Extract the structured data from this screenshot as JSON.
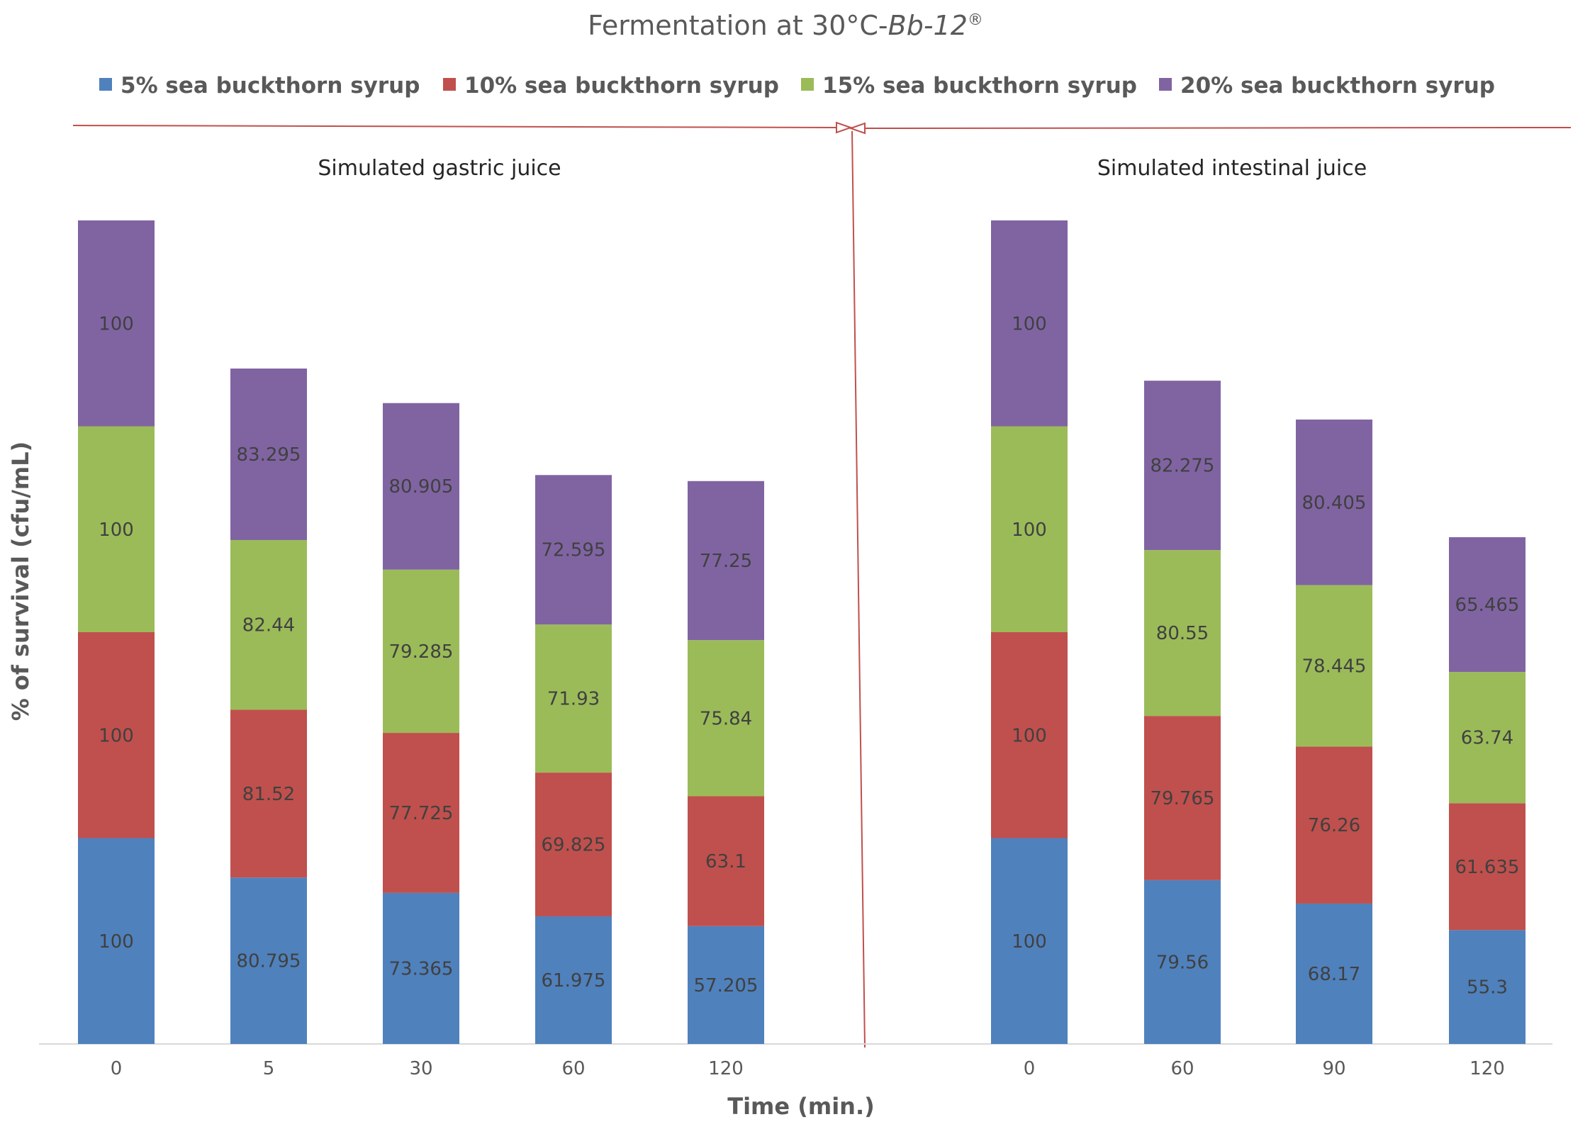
{
  "chart_data": {
    "type": "bar",
    "stacked": true,
    "title": "Fermentation at 30°C-",
    "title_italic": "Bb-12",
    "title_sup": "®",
    "ylabel": "% of survival (cfu/mL)",
    "xlabel": "Time (min.)",
    "ylim": [
      0,
      400
    ],
    "colors": [
      "#4f81bd",
      "#c0504d",
      "#9bbb59",
      "#8064a2"
    ],
    "divider_color": "#c0504d",
    "legend": [
      "5% sea buckthorn syrup",
      "10% sea buckthorn syrup",
      "15% sea buckthorn syrup",
      "20% sea buckthorn syrup"
    ],
    "panels": [
      {
        "label": "Simulated gastric juice",
        "categories": [
          "0",
          "5",
          "30",
          "60",
          "120"
        ],
        "series": [
          {
            "name": "5% sea buckthorn syrup",
            "values": [
              100,
              80.795,
              73.365,
              61.975,
              57.205
            ]
          },
          {
            "name": "10% sea buckthorn syrup",
            "values": [
              100,
              81.52,
              77.725,
              69.825,
              63.1
            ]
          },
          {
            "name": "15% sea buckthorn syrup",
            "values": [
              100,
              82.44,
              79.285,
              71.93,
              75.84
            ]
          },
          {
            "name": "20% sea buckthorn syrup",
            "values": [
              100,
              83.295,
              80.905,
              72.595,
              77.25
            ]
          }
        ]
      },
      {
        "label": "Simulated intestinal juice",
        "categories": [
          "0",
          "60",
          "90",
          "120"
        ],
        "series": [
          {
            "name": "5% sea buckthorn syrup",
            "values": [
              100,
              79.56,
              68.17,
              55.3
            ]
          },
          {
            "name": "10% sea buckthorn syrup",
            "values": [
              100,
              79.765,
              76.26,
              61.635
            ]
          },
          {
            "name": "15% sea buckthorn syrup",
            "values": [
              100,
              80.55,
              78.445,
              63.74
            ]
          },
          {
            "name": "20% sea buckthorn syrup",
            "values": [
              100,
              82.275,
              80.405,
              65.465
            ]
          }
        ]
      }
    ]
  }
}
